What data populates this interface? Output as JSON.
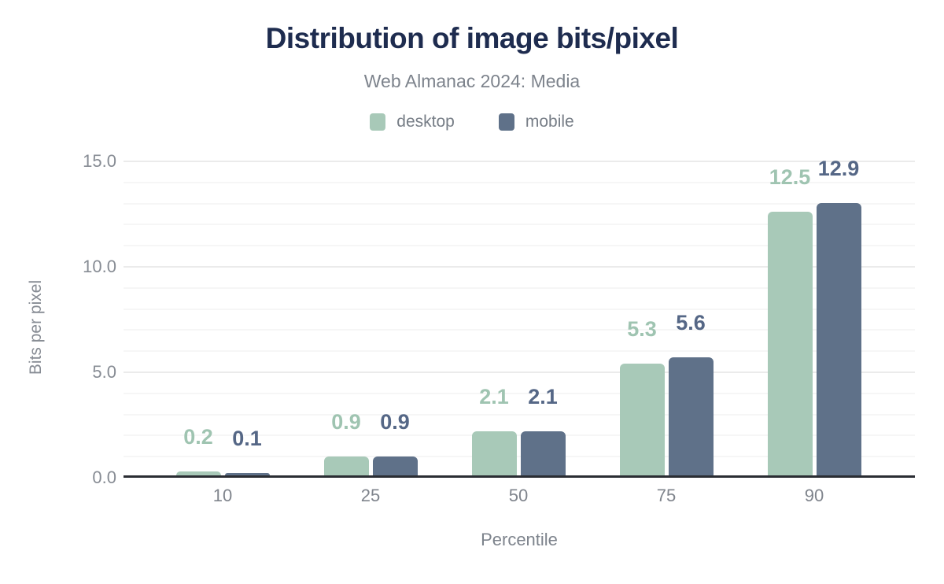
{
  "chart_data": {
    "type": "bar",
    "title": "Distribution of image bits/pixel",
    "subtitle": "Web Almanac 2024: Media",
    "xlabel": "Percentile",
    "ylabel": "Bits per pixel",
    "categories": [
      "10",
      "25",
      "50",
      "75",
      "90"
    ],
    "series": [
      {
        "name": "desktop",
        "color": "#a8c9b8",
        "label_color": "#9fc4b1",
        "values": [
          0.2,
          0.9,
          2.1,
          5.3,
          12.5
        ],
        "labels": [
          "0.2",
          "0.9",
          "2.1",
          "5.3",
          "12.5"
        ]
      },
      {
        "name": "mobile",
        "color": "#5f7189",
        "label_color": "#556786",
        "values": [
          0.1,
          0.9,
          2.1,
          5.6,
          12.9
        ],
        "labels": [
          "0.1",
          "0.9",
          "2.1",
          "5.6",
          "12.9"
        ]
      }
    ],
    "ylim": [
      0,
      15
    ],
    "y_minor_step": 1,
    "y_major_step": 5,
    "y_ticks": [
      {
        "value": 0,
        "label": "0.0"
      },
      {
        "value": 5,
        "label": "5.0"
      },
      {
        "value": 10,
        "label": "10.0"
      },
      {
        "value": 15,
        "label": "15.0"
      }
    ],
    "grid": true,
    "legend_position": "top"
  },
  "colors": {
    "background": "#ffffff",
    "title": "#1e2c4f",
    "subtitle": "#7d838c",
    "tick": "#878c94",
    "axis_line": "#2a2d33",
    "grid_major": "#ebebeb",
    "grid_minor": "#f6f6f6"
  }
}
